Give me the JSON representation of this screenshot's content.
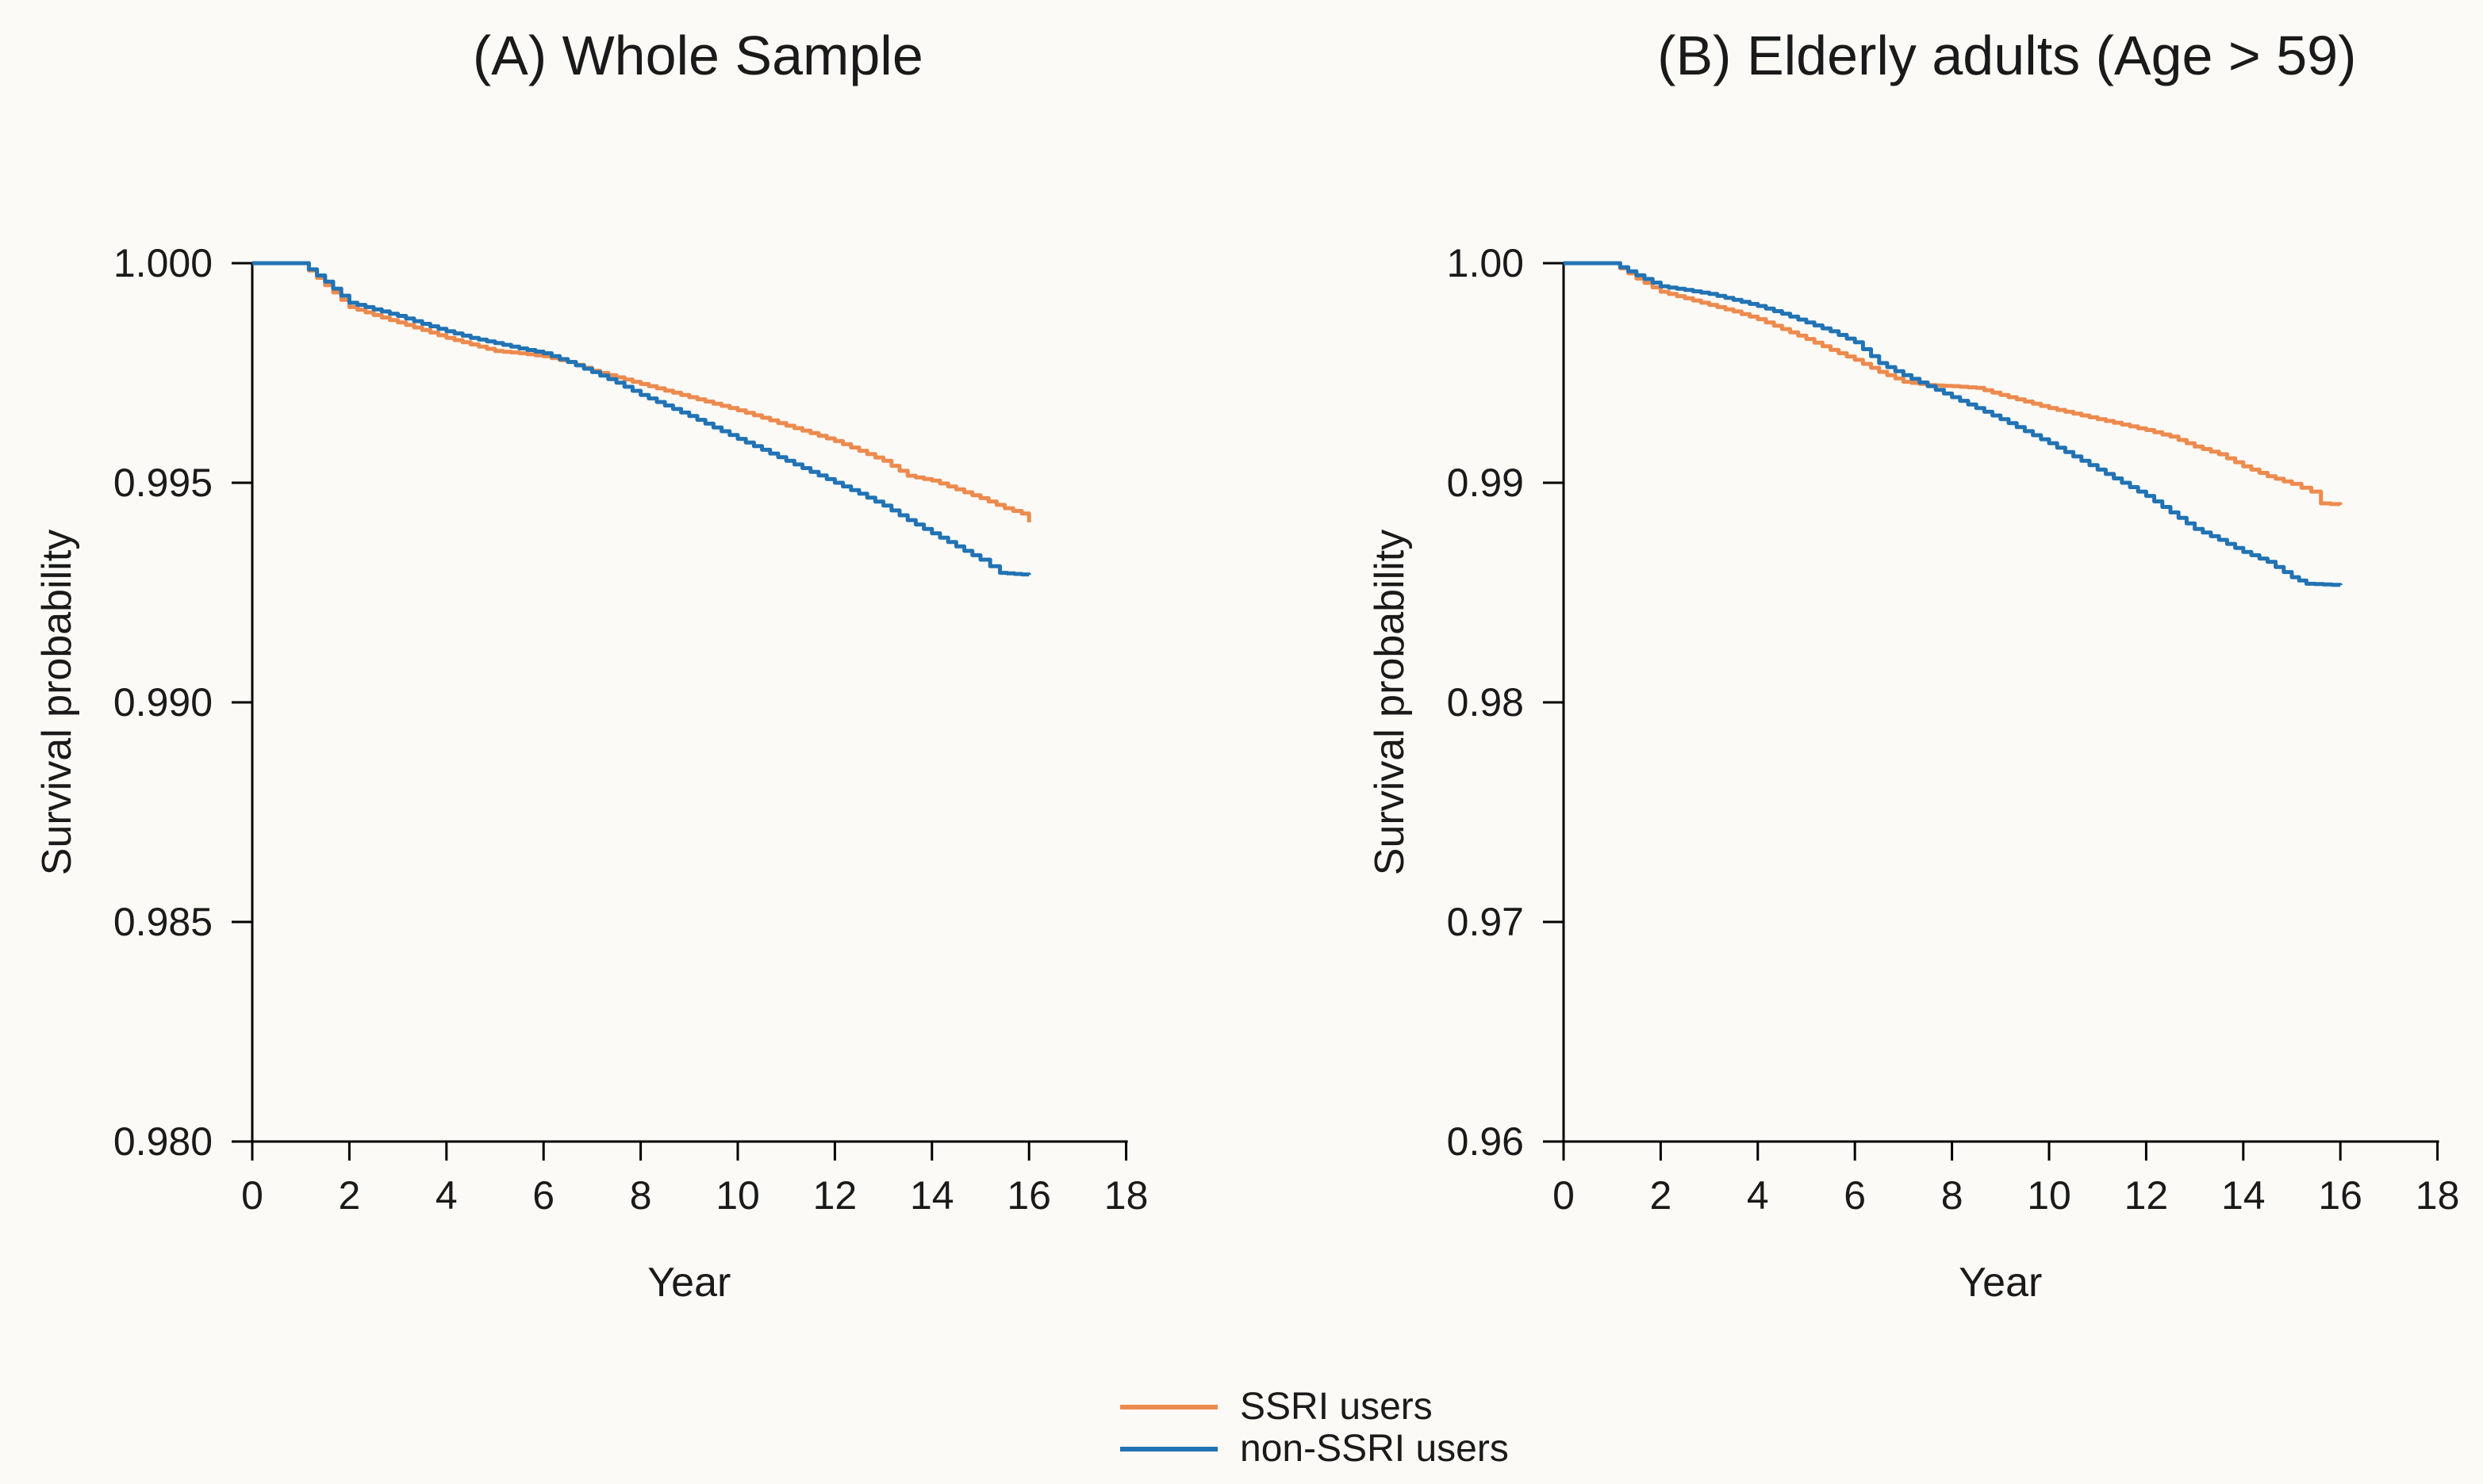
{
  "figure": {
    "background": "#FCFAF6",
    "text_color": "#1a1a1a",
    "axis_color": "#000000"
  },
  "colors": {
    "ssri": "#ED8A4E",
    "non_ssri": "#2173B4"
  },
  "legend": {
    "position": "bottom-center",
    "items": [
      {
        "label": "SSRI users",
        "color": "#ED8A4E"
      },
      {
        "label": "non-SSRI users",
        "color": "#2173B4"
      }
    ]
  },
  "chart_data": [
    {
      "type": "line",
      "subtype": "kaplan-meier-step",
      "title": "(A) Whole Sample",
      "xlabel": "Year",
      "ylabel": "Survival probability",
      "xlim": [
        0,
        18
      ],
      "ylim": [
        0.98,
        1.0
      ],
      "grid": false,
      "x_ticks": [
        0,
        2,
        4,
        6,
        8,
        10,
        12,
        14,
        16,
        18
      ],
      "y_ticks": [
        {
          "value": 1.0,
          "label": "1.000"
        },
        {
          "value": 0.995,
          "label": "0.995"
        },
        {
          "value": 0.99,
          "label": "0.990"
        },
        {
          "value": 0.985,
          "label": "0.985"
        },
        {
          "value": 0.98,
          "label": "0.980"
        }
      ],
      "series": [
        {
          "name": "SSRI users",
          "color_key": "ssri",
          "points": [
            [
              0,
              1.0
            ],
            [
              1,
              1.0
            ],
            [
              1.5,
              0.9995
            ],
            [
              2,
              0.999
            ],
            [
              2.5,
              0.99882
            ],
            [
              3,
              0.99865
            ],
            [
              3.5,
              0.99848
            ],
            [
              4,
              0.9983
            ],
            [
              4.5,
              0.99815
            ],
            [
              5,
              0.998
            ],
            [
              5.5,
              0.99795
            ],
            [
              6,
              0.99788
            ],
            [
              6.5,
              0.99775
            ],
            [
              7,
              0.99755
            ],
            [
              7.5,
              0.9974
            ],
            [
              8,
              0.99725
            ],
            [
              8.5,
              0.9971
            ],
            [
              9,
              0.99695
            ],
            [
              9.5,
              0.9968
            ],
            [
              10,
              0.99665
            ],
            [
              10.5,
              0.99648
            ],
            [
              11,
              0.9963
            ],
            [
              11.5,
              0.99613
            ],
            [
              12,
              0.99595
            ],
            [
              12.5,
              0.99573
            ],
            [
              13,
              0.9955
            ],
            [
              13.5,
              0.99516
            ],
            [
              14,
              0.99505
            ],
            [
              14.5,
              0.99485
            ],
            [
              15,
              0.99465
            ],
            [
              15.5,
              0.99442
            ],
            [
              15.85,
              0.9943
            ],
            [
              16,
              0.9941
            ]
          ]
        },
        {
          "name": "non-SSRI users",
          "color_key": "non_ssri",
          "points": [
            [
              0,
              1.0
            ],
            [
              1,
              1.0
            ],
            [
              1.5,
              0.99958
            ],
            [
              2,
              0.9991
            ],
            [
              2.5,
              0.99895
            ],
            [
              3,
              0.9988
            ],
            [
              3.5,
              0.99862
            ],
            [
              4,
              0.99845
            ],
            [
              4.5,
              0.9983
            ],
            [
              5,
              0.99818
            ],
            [
              5.5,
              0.99806
            ],
            [
              6,
              0.99795
            ],
            [
              6.5,
              0.99775
            ],
            [
              7,
              0.99752
            ],
            [
              7.5,
              0.99728
            ],
            [
              8,
              0.997
            ],
            [
              8.5,
              0.99676
            ],
            [
              9,
              0.99652
            ],
            [
              9.5,
              0.99626
            ],
            [
              10,
              0.996
            ],
            [
              10.5,
              0.99575
            ],
            [
              11,
              0.9955
            ],
            [
              11.5,
              0.99525
            ],
            [
              12,
              0.995
            ],
            [
              12.5,
              0.99475
            ],
            [
              13,
              0.99448
            ],
            [
              13.5,
              0.99415
            ],
            [
              14,
              0.99385
            ],
            [
              14.5,
              0.99355
            ],
            [
              15,
              0.99325
            ],
            [
              15.4,
              0.99295
            ],
            [
              16,
              0.9929
            ]
          ]
        }
      ]
    },
    {
      "type": "line",
      "subtype": "kaplan-meier-step",
      "title": "(B) Elderly adults (Age > 59)",
      "xlabel": "Year",
      "ylabel": "Survival probability",
      "xlim": [
        0,
        18
      ],
      "ylim": [
        0.96,
        1.0
      ],
      "grid": false,
      "x_ticks": [
        0,
        2,
        4,
        6,
        8,
        10,
        12,
        14,
        16,
        18
      ],
      "y_ticks": [
        {
          "value": 1.0,
          "label": "1.00"
        },
        {
          "value": 0.99,
          "label": "0.99"
        },
        {
          "value": 0.98,
          "label": "0.98"
        },
        {
          "value": 0.97,
          "label": "0.97"
        },
        {
          "value": 0.96,
          "label": "0.96"
        }
      ],
      "series": [
        {
          "name": "SSRI users",
          "color_key": "ssri",
          "points": [
            [
              0,
              1.0
            ],
            [
              1,
              1.0
            ],
            [
              1.5,
              0.9993
            ],
            [
              2,
              0.9987
            ],
            [
              2.5,
              0.9984
            ],
            [
              3,
              0.9981
            ],
            [
              3.5,
              0.9978
            ],
            [
              4,
              0.99745
            ],
            [
              4.5,
              0.997
            ],
            [
              5,
              0.99655
            ],
            [
              5.5,
              0.99605
            ],
            [
              6,
              0.9956
            ],
            [
              6.5,
              0.99505
            ],
            [
              7,
              0.9946
            ],
            [
              7.5,
              0.99445
            ],
            [
              8,
              0.9944
            ],
            [
              8.5,
              0.99432
            ],
            [
              9,
              0.994
            ],
            [
              9.5,
              0.9937
            ],
            [
              10,
              0.9934
            ],
            [
              10.5,
              0.99315
            ],
            [
              11,
              0.9929
            ],
            [
              11.5,
              0.99265
            ],
            [
              12,
              0.9924
            ],
            [
              12.5,
              0.9921
            ],
            [
              13,
              0.99165
            ],
            [
              13.5,
              0.9913
            ],
            [
              14,
              0.99075
            ],
            [
              14.5,
              0.9903
            ],
            [
              15,
              0.98995
            ],
            [
              15.4,
              0.9896
            ],
            [
              15.6,
              0.98906
            ],
            [
              16,
              0.989
            ]
          ]
        },
        {
          "name": "non-SSRI users",
          "color_key": "non_ssri",
          "points": [
            [
              0,
              1.0
            ],
            [
              1,
              1.0
            ],
            [
              1.5,
              0.99945
            ],
            [
              2,
              0.99895
            ],
            [
              2.5,
              0.99878
            ],
            [
              3,
              0.9986
            ],
            [
              3.5,
              0.99833
            ],
            [
              4,
              0.99805
            ],
            [
              4.5,
              0.9977
            ],
            [
              5,
              0.9973
            ],
            [
              5.5,
              0.9969
            ],
            [
              6,
              0.9964
            ],
            [
              6.5,
              0.99545
            ],
            [
              7,
              0.9949
            ],
            [
              7.5,
              0.9944
            ],
            [
              8,
              0.9939
            ],
            [
              8.5,
              0.9934
            ],
            [
              9,
              0.9929
            ],
            [
              9.5,
              0.99235
            ],
            [
              10,
              0.9918
            ],
            [
              10.5,
              0.9912
            ],
            [
              11,
              0.9906
            ],
            [
              11.5,
              0.99
            ],
            [
              12,
              0.9894
            ],
            [
              12.5,
              0.98865
            ],
            [
              13,
              0.9879
            ],
            [
              13.5,
              0.9874
            ],
            [
              14,
              0.98685
            ],
            [
              14.5,
              0.9864
            ],
            [
              15,
              0.9857
            ],
            [
              15.3,
              0.9854
            ],
            [
              16,
              0.98534
            ]
          ]
        }
      ]
    }
  ]
}
